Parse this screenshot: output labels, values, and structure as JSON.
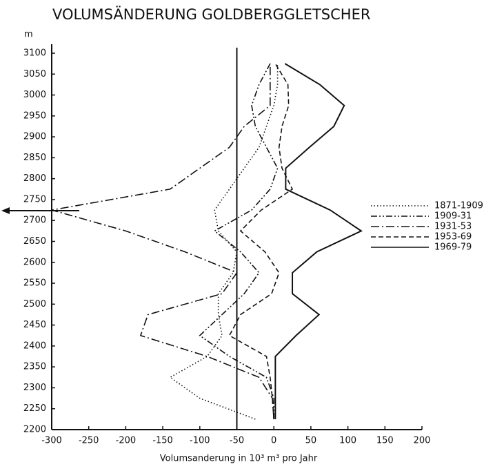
{
  "chart_data": {
    "type": "line",
    "title": "VOLUMSÄNDERUNG GOLDBERGGLETSCHER",
    "y_label": "m",
    "x_label": "Volumsanderung in 10³ m³ pro Jahr",
    "xlim": [
      -300,
      200
    ],
    "xticks": [
      -300,
      -250,
      -200,
      -150,
      -100,
      -50,
      0,
      50,
      100,
      150,
      200
    ],
    "ylim": [
      2200,
      3100
    ],
    "yticks": [
      2200,
      2250,
      2300,
      2350,
      2400,
      2450,
      2500,
      2550,
      2600,
      2650,
      2700,
      2750,
      2800,
      2850,
      2900,
      2950,
      3000,
      3050,
      3100
    ],
    "reference_x": -50,
    "y": [
      2225,
      2275,
      2325,
      2375,
      2425,
      2475,
      2525,
      2575,
      2625,
      2675,
      2725,
      2775,
      2825,
      2875,
      2925,
      2975,
      3025,
      3075
    ],
    "series": [
      {
        "name": "1871-1909",
        "color": "#111",
        "dash": "1.5 3",
        "values": [
          -25,
          -100,
          -140,
          -90,
          -70,
          -75,
          -75,
          -55,
          -50,
          -75,
          -80,
          -60,
          -40,
          -20,
          -10,
          0,
          5,
          5
        ]
      },
      {
        "name": "1909-31",
        "color": "#111",
        "dash": "9 3 2 3 2 3",
        "values": [
          0,
          0,
          -10,
          -60,
          -100,
          -70,
          -40,
          -20,
          -45,
          -80,
          -30,
          -5,
          5,
          -10,
          -25,
          -30,
          -20,
          -5
        ]
      },
      {
        "name": "1931-53",
        "color": "#111",
        "dash": "12 4 2 4",
        "values": [
          0,
          -2,
          -20,
          -90,
          -180,
          -170,
          -70,
          -50,
          -120,
          -200,
          -300,
          -140,
          -100,
          -60,
          -40,
          -5,
          -5,
          -5
        ]
      },
      {
        "name": "1953-69",
        "color": "#111",
        "dash": "7 4",
        "values": [
          0,
          -2,
          -5,
          -10,
          -60,
          -45,
          -3,
          7,
          -12,
          -45,
          -17,
          25,
          11,
          7,
          11,
          20,
          19,
          2
        ]
      },
      {
        "name": "1969-79",
        "color": "#111",
        "dash": "none",
        "values": [
          2,
          2,
          2,
          2,
          30,
          61,
          25,
          25,
          58,
          118,
          76,
          16,
          16,
          48,
          81,
          95,
          62,
          15
        ]
      }
    ]
  }
}
